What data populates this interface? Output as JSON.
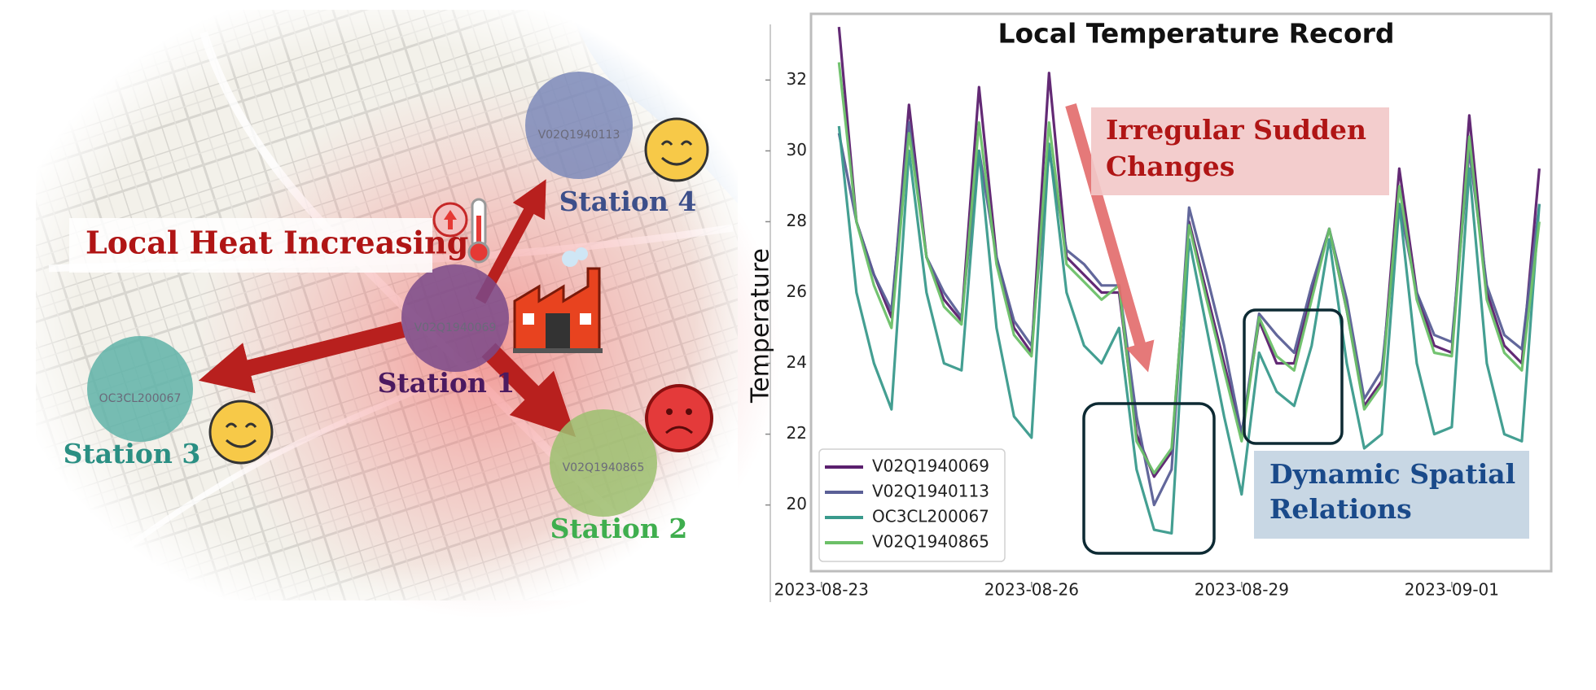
{
  "chart_data": {
    "type": "line",
    "title": "Local Temperature Record",
    "ylabel": "Temperature",
    "x": [
      0.25,
      0.5,
      0.75,
      1.0,
      1.25,
      1.5,
      1.75,
      2.0,
      2.25,
      2.5,
      2.75,
      3.0,
      3.25,
      3.5,
      3.75,
      4.0,
      4.25,
      4.5,
      4.75,
      5.0,
      5.25,
      5.5,
      5.75,
      6.0,
      6.25,
      6.5,
      6.75,
      7.0,
      7.25,
      7.5,
      7.75,
      8.0,
      8.25,
      8.5,
      8.75,
      9.0,
      9.25,
      9.5,
      9.75,
      10.0,
      10.25
    ],
    "xlim": [
      -0.73,
      10.42
    ],
    "xticks": [
      {
        "value": 0,
        "label": "2023-08-23"
      },
      {
        "value": 3,
        "label": "2023-08-26"
      },
      {
        "value": 6,
        "label": "2023-08-29"
      },
      {
        "value": 9,
        "label": "2023-09-01"
      }
    ],
    "ylim": [
      18.13,
      33.87
    ],
    "yticks": [
      20,
      22,
      24,
      26,
      28,
      30,
      32
    ],
    "legend": "lower left",
    "series": [
      {
        "name": "V02Q1940069",
        "color": "#5b1f6e",
        "values": [
          33.5,
          28,
          26.5,
          25.3,
          31.3,
          27,
          25.8,
          25.2,
          31.8,
          27,
          25,
          24.3,
          32.2,
          27,
          26.5,
          26,
          26,
          22,
          20.8,
          21.5,
          28,
          26,
          24,
          22,
          25.2,
          24,
          24,
          26,
          27.8,
          25.5,
          22.8,
          23.5,
          29.5,
          26,
          24.5,
          24.3,
          31,
          26,
          24.5,
          24,
          29.5
        ]
      },
      {
        "name": "V02Q1940113",
        "color": "#5a5f96",
        "values": [
          30.5,
          28,
          26.5,
          25.5,
          30.8,
          27,
          26,
          25.3,
          30,
          27,
          25.2,
          24.5,
          30,
          27.2,
          26.8,
          26.2,
          26.2,
          22.5,
          20,
          21,
          28.4,
          26.5,
          24.5,
          22,
          25.4,
          24.8,
          24.3,
          26.2,
          27.8,
          25.8,
          23,
          23.8,
          28.5,
          26,
          24.8,
          24.6,
          30,
          26.2,
          24.8,
          24.4,
          28.5
        ]
      },
      {
        "name": "OC3CL200067",
        "color": "#3a9a8c",
        "values": [
          30.7,
          26,
          24,
          22.7,
          30,
          26,
          24,
          23.8,
          30,
          25,
          22.5,
          21.9,
          30.2,
          26,
          24.5,
          24,
          25,
          21,
          19.3,
          19.2,
          27.5,
          25,
          22.5,
          20.3,
          24.3,
          23.2,
          22.8,
          24.5,
          27.5,
          24,
          21.6,
          22,
          28.5,
          24,
          22,
          22.2,
          29.5,
          24,
          22,
          21.8,
          28.5
        ]
      },
      {
        "name": "V02Q1940865",
        "color": "#6cc068",
        "values": [
          32.5,
          28,
          26.2,
          25,
          30.5,
          27,
          25.6,
          25.1,
          30.8,
          26.8,
          24.8,
          24.2,
          30.8,
          26.8,
          26.3,
          25.8,
          26.2,
          21.8,
          20.9,
          21.6,
          27.9,
          25.8,
          23.8,
          21.8,
          25.3,
          24.2,
          23.8,
          25.8,
          27.8,
          25.5,
          22.7,
          23.4,
          29,
          25.8,
          24.3,
          24.2,
          30.4,
          25.8,
          24.3,
          23.8,
          28
        ]
      }
    ],
    "annotations": [
      {
        "lines": [
          "Irregular Sudden",
          "Changes"
        ]
      },
      {
        "lines": [
          "Dynamic Spatial",
          "Relations"
        ]
      }
    ]
  },
  "map": {
    "banner": "Local Heat Increasing",
    "stations": [
      {
        "label": "Station 1",
        "id": "V02Q1940069"
      },
      {
        "label": "Station 2",
        "id": "V02Q1940865"
      },
      {
        "label": "Station 3",
        "id": "OC3CL200067"
      },
      {
        "label": "Station 4",
        "id": "V02Q1940113"
      }
    ]
  }
}
